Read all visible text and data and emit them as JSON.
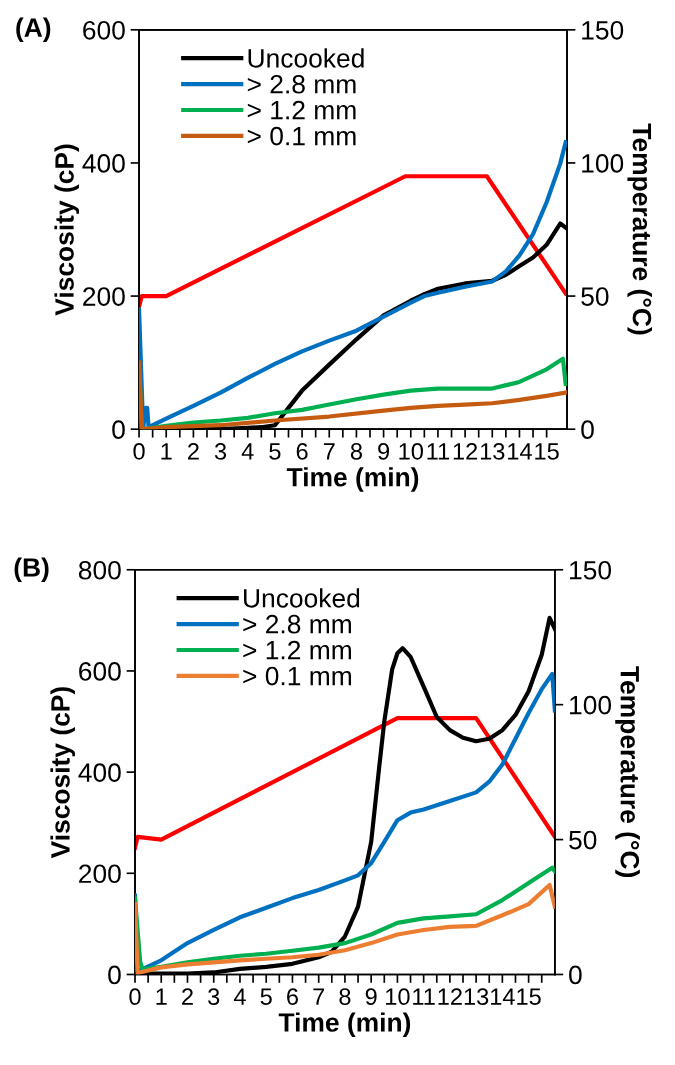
{
  "chart_data": [
    {
      "type": "line",
      "title": "(A)",
      "xlabel": "Time (min)",
      "ylabel": "Viscosity (cP)",
      "y2label": "Temperature (°C)",
      "xlim": [
        0,
        15.75
      ],
      "xticks": [
        0,
        {
          "value": 0.5,
          "label": null
        },
        1,
        {
          "value": 1.5,
          "label": null
        },
        2,
        {
          "value": 2.5,
          "label": null
        },
        3,
        {
          "value": 3.5,
          "label": null
        },
        4,
        {
          "value": 4.5,
          "label": null
        },
        5,
        {
          "value": 5.5,
          "label": null
        },
        6,
        {
          "value": 6.5,
          "label": null
        },
        7,
        {
          "value": 7.5,
          "label": null
        },
        8,
        {
          "value": 8.5,
          "label": null
        },
        9,
        {
          "value": 9.5,
          "label": null
        },
        10,
        {
          "value": 10.5,
          "label": null
        },
        11,
        {
          "value": 11.5,
          "label": null
        },
        12,
        {
          "value": 12.5,
          "label": null
        },
        13,
        {
          "value": 13.5,
          "label": null
        },
        14,
        {
          "value": 14.5,
          "label": null
        },
        15
      ],
      "ylim": [
        0,
        600
      ],
      "yticks": [
        0,
        200,
        400,
        600
      ],
      "y2lim": [
        0,
        150
      ],
      "y2ticks": [
        0,
        50,
        100,
        150
      ],
      "grid": false,
      "legend": "top left",
      "marker": "none",
      "line_style": "solid",
      "series": [
        {
          "name": "Uncooked",
          "color": "#000000",
          "x": [
            0,
            1,
            2,
            3,
            4,
            4.5,
            5,
            5.5,
            6,
            7,
            8,
            9,
            10,
            10.5,
            11,
            12,
            13,
            13.5,
            14,
            14.5,
            15,
            15.5,
            15.7
          ],
          "values": [
            0,
            0,
            0,
            0,
            2,
            3,
            6,
            32,
            58,
            97,
            135,
            171,
            193,
            203,
            211,
            219,
            223,
            232,
            245,
            258,
            277,
            309,
            303
          ]
        },
        {
          "name": "> 2.8 mm",
          "color": "#0070c0",
          "x": [
            0,
            0.15,
            0.25,
            0.3,
            0.35,
            1,
            2,
            3,
            4,
            5,
            6,
            7,
            8,
            9,
            10,
            10.5,
            11,
            12,
            13,
            13.5,
            14,
            14.5,
            15,
            15.5,
            15.7
          ],
          "values": [
            180,
            2,
            32,
            32,
            3,
            16,
            35,
            55,
            77,
            98,
            117,
            133,
            148,
            169,
            190,
            200,
            205,
            214,
            222,
            237,
            261,
            293,
            341,
            399,
            431
          ]
        },
        {
          "name": "> 1.2 mm",
          "color": "#00b050",
          "x": [
            0,
            0.1,
            1,
            2,
            3,
            4,
            5,
            6,
            7,
            8,
            9,
            10,
            11,
            12,
            13,
            14,
            15,
            15.6,
            15.7
          ],
          "values": [
            100,
            0,
            5,
            10,
            13,
            17,
            24,
            29,
            37,
            45,
            52,
            58,
            61,
            61,
            61,
            71,
            90,
            106,
            68
          ]
        },
        {
          "name": "> 0.1 mm",
          "color": "#c55a11",
          "x": [
            0,
            0.1,
            1,
            3,
            5,
            7,
            9,
            10,
            11,
            12,
            13,
            14,
            15,
            15.7
          ],
          "values": [
            100,
            0,
            3,
            6,
            13,
            19,
            28,
            32,
            35,
            37,
            39,
            44,
            50,
            55
          ]
        },
        {
          "color": "#ff0000",
          "axis": "y2",
          "x": [
            0,
            0.1,
            1.0,
            9.8,
            12.8,
            15.7
          ],
          "values": [
            46,
            50,
            50,
            95,
            95,
            51
          ]
        }
      ]
    },
    {
      "type": "line",
      "title": "(B)",
      "xlabel": "Time (min)",
      "ylabel": "Viscosity (cP)",
      "y2label": "Temperature (°C)",
      "xlim": [
        0,
        16
      ],
      "xticks": [
        0,
        {
          "value": 0.5,
          "label": null
        },
        1,
        {
          "value": 1.5,
          "label": null
        },
        2,
        {
          "value": 2.5,
          "label": null
        },
        3,
        {
          "value": 3.5,
          "label": null
        },
        4,
        {
          "value": 4.5,
          "label": null
        },
        5,
        {
          "value": 5.5,
          "label": null
        },
        6,
        {
          "value": 6.5,
          "label": null
        },
        7,
        {
          "value": 7.5,
          "label": null
        },
        8,
        {
          "value": 8.5,
          "label": null
        },
        9,
        {
          "value": 9.5,
          "label": null
        },
        10,
        {
          "value": 10.5,
          "label": null
        },
        11,
        {
          "value": 11.5,
          "label": null
        },
        12,
        {
          "value": 12.5,
          "label": null
        },
        13,
        {
          "value": 13.5,
          "label": null
        },
        14,
        {
          "value": 14.5,
          "label": null
        },
        15,
        {
          "value": 15.5,
          "label": null
        }
      ],
      "ylim": [
        0,
        800
      ],
      "yticks": [
        0,
        200,
        400,
        600,
        800
      ],
      "y2lim": [
        0,
        150
      ],
      "y2ticks": [
        0,
        50,
        100,
        150
      ],
      "grid": false,
      "legend": "top left",
      "marker": "none",
      "line_style": "solid",
      "series": [
        {
          "name": "Uncooked",
          "color": "#000000",
          "x": [
            0,
            1,
            2,
            3,
            4,
            5,
            6,
            7,
            7.5,
            8,
            8.5,
            9,
            9.3,
            9.5,
            9.8,
            10,
            10.2,
            10.5,
            11,
            11.5,
            12,
            12.5,
            13,
            13.5,
            14,
            14.5,
            15,
            15.5,
            15.8,
            16
          ],
          "values": [
            2,
            2,
            2,
            4,
            11,
            15,
            21,
            34,
            45,
            75,
            134,
            262,
            407,
            500,
            603,
            635,
            645,
            628,
            569,
            509,
            483,
            468,
            461,
            466,
            483,
            513,
            560,
            632,
            705,
            683
          ]
        },
        {
          "name": "> 2.8 mm",
          "color": "#0070c0",
          "x": [
            0,
            0.1,
            0.3,
            1,
            2,
            3,
            4,
            5,
            6,
            7,
            8,
            8.5,
            9,
            9.5,
            10,
            10.5,
            11,
            12,
            13,
            13.5,
            14,
            14.5,
            15,
            15.5,
            15.9,
            16
          ],
          "values": [
            156,
            7,
            11,
            28,
            62,
            88,
            113,
            132,
            151,
            167,
            186,
            196,
            220,
            262,
            305,
            320,
            326,
            343,
            360,
            381,
            415,
            466,
            517,
            564,
            594,
            522
          ]
        },
        {
          "name": "> 1.2 mm",
          "color": "#00b050",
          "x": [
            0,
            0.2,
            0.3,
            1,
            2,
            3,
            4,
            5,
            6,
            7,
            8,
            9,
            10,
            11,
            12,
            13,
            14,
            15,
            15.9,
            16
          ],
          "values": [
            150,
            24,
            10,
            15,
            24,
            31,
            37,
            41,
            47,
            53,
            62,
            79,
            102,
            111,
            115,
            119,
            147,
            181,
            211,
            204
          ]
        },
        {
          "name": "> 0.1 mm",
          "color": "#ed7d31",
          "x": [
            0,
            0.1,
            1,
            2,
            3,
            4,
            5,
            6,
            7,
            8,
            9,
            10,
            11,
            12,
            13,
            14,
            15,
            15.8,
            16
          ],
          "values": [
            139,
            3,
            14,
            20,
            24,
            28,
            31,
            34,
            39,
            48,
            62,
            79,
            88,
            94,
            96,
            117,
            139,
            177,
            134
          ]
        },
        {
          "color": "#ff0000",
          "axis": "y2",
          "x": [
            0,
            0.1,
            1.0,
            10.0,
            13.0,
            16.0
          ],
          "values": [
            47,
            51,
            50,
            95,
            95,
            51
          ]
        }
      ]
    }
  ]
}
